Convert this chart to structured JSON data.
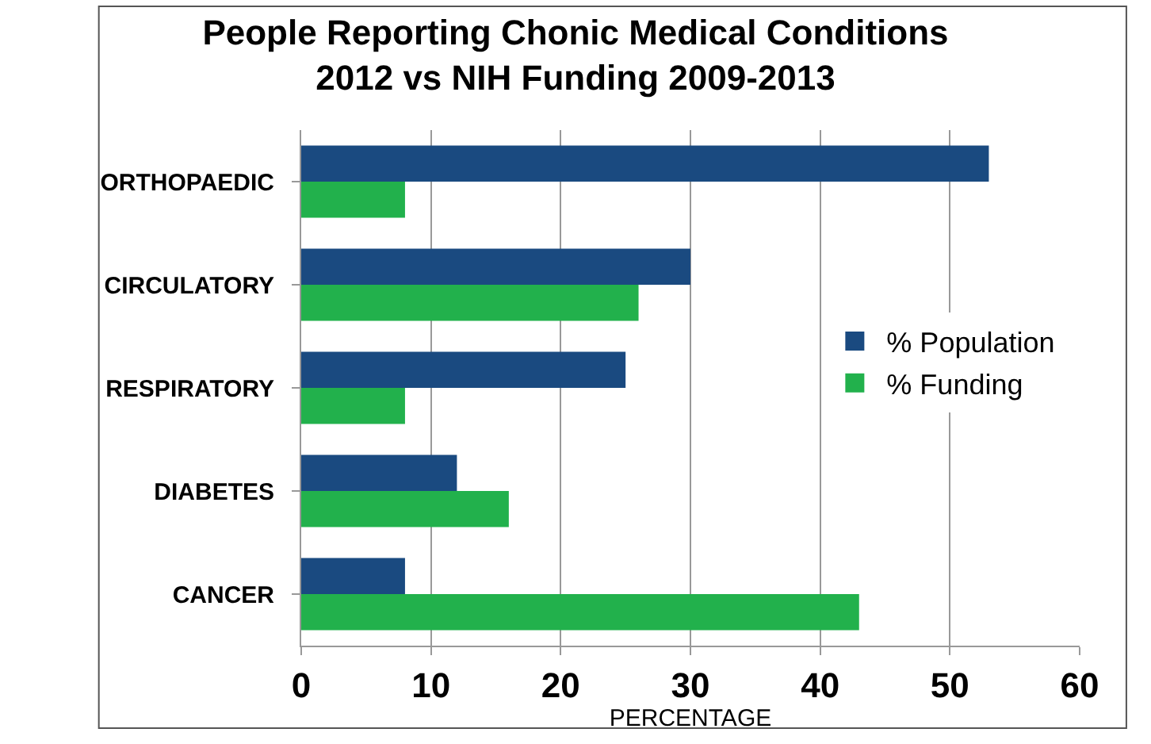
{
  "chart_data": {
    "type": "bar",
    "orientation": "horizontal",
    "title": "People Reporting Chonic Medical Conditions\n2012 vs NIH Funding 2009-2013",
    "xlabel": "PERCENTAGE",
    "categories": [
      "ORTHOPAEDIC",
      "CIRCULATORY",
      "RESPIRATORY",
      "DIABETES",
      "CANCER"
    ],
    "series": [
      {
        "name": "% Population",
        "color": "#1a4a80",
        "values": [
          53,
          30,
          25,
          12,
          8
        ]
      },
      {
        "name": "% Funding",
        "color": "#22b14c",
        "values": [
          8,
          26,
          8,
          16,
          43
        ]
      }
    ],
    "xlim": [
      0,
      60
    ],
    "xticks": [
      0,
      10,
      20,
      30,
      40,
      50,
      60
    ],
    "grid": "x",
    "legend": "right"
  }
}
